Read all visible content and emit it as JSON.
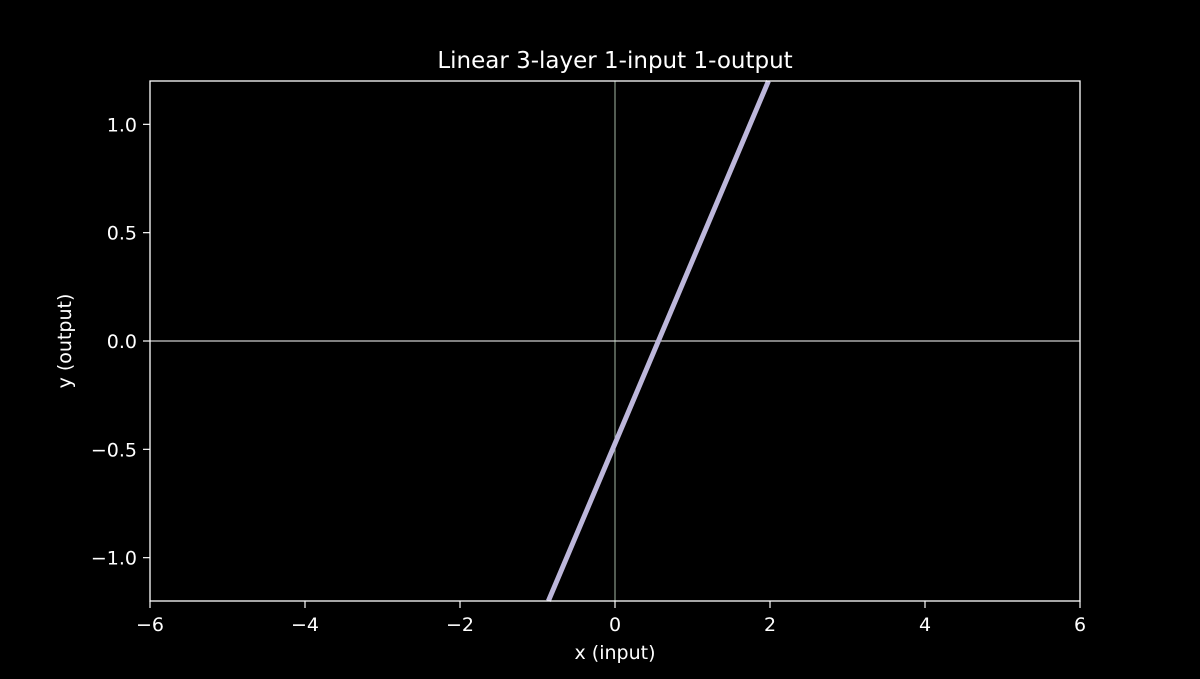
{
  "chart_data": {
    "type": "line",
    "title": "Linear 3-layer 1-input 1-output",
    "xlabel": "x (input)",
    "ylabel": "y (output)",
    "xlim": [
      -6,
      6
    ],
    "ylim": [
      -1.2,
      1.2
    ],
    "x_ticks": [
      -6,
      -4,
      -2,
      0,
      2,
      4,
      6
    ],
    "x_tick_labels": [
      "−6",
      "−4",
      "−2",
      "0",
      "2",
      "4",
      "6"
    ],
    "y_ticks": [
      -1.0,
      -0.5,
      0.0,
      0.5,
      1.0
    ],
    "y_tick_labels": [
      "−1.0",
      "−0.5",
      "0.0",
      "0.5",
      "1.0"
    ],
    "series": [
      {
        "x": [
          -0.86,
          1.98
        ],
        "y": [
          -1.2,
          1.2
        ],
        "color": "#bdb7db"
      }
    ],
    "reference_lines": {
      "horizontal_y": 0,
      "vertical_x": 0,
      "horizontal_color": "#ffffff",
      "vertical_color": "#cfe8cf"
    },
    "grid": false,
    "background": "#000000",
    "foreground": "#ffffff"
  }
}
